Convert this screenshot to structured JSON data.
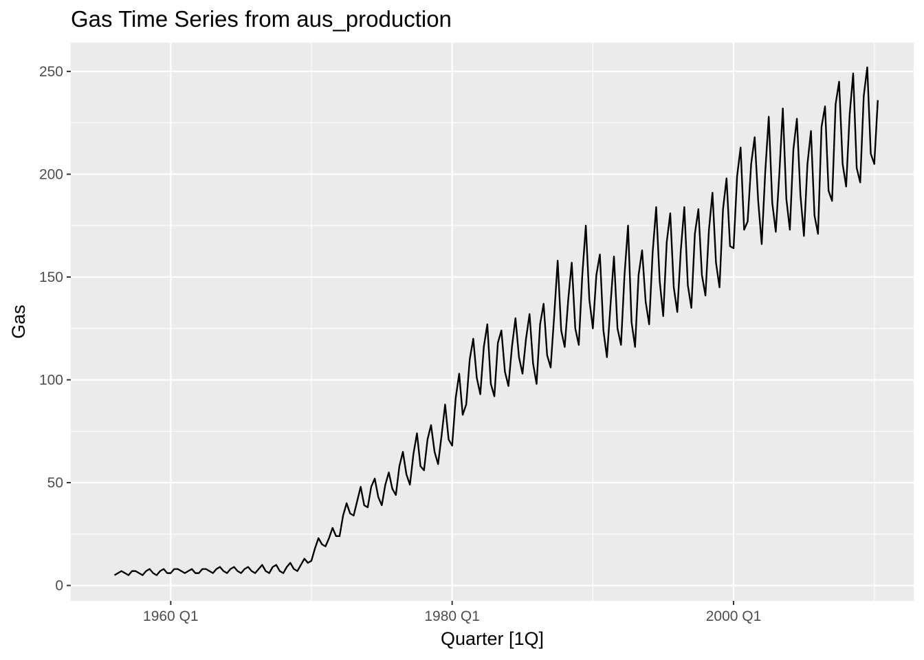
{
  "chart_data": {
    "type": "line",
    "title": "Gas Time Series from aus_production",
    "xlabel": "Quarter [1Q]",
    "ylabel": "Gas",
    "x_ticks": [
      {
        "label": "1960 Q1",
        "value": 1960.0
      },
      {
        "label": "1980 Q1",
        "value": 1980.0
      },
      {
        "label": "2000 Q1",
        "value": 2000.0
      }
    ],
    "y_ticks": [
      {
        "label": "0",
        "value": 0
      },
      {
        "label": "50",
        "value": 50
      },
      {
        "label": "100",
        "value": 100
      },
      {
        "label": "150",
        "value": 150
      },
      {
        "label": "200",
        "value": 200
      },
      {
        "label": "250",
        "value": 250
      }
    ],
    "xlim": [
      1952.9,
      2012.8
    ],
    "ylim": [
      -7.5,
      264
    ],
    "grid": true,
    "colors": {
      "panel": "#ebebeb",
      "grid": "#ffffff",
      "line": "#000000"
    },
    "series": [
      {
        "x_start": "1956 Q1",
        "frequency": "quarterly",
        "values": [
          5,
          6,
          7,
          6,
          5,
          7,
          7,
          6,
          5,
          7,
          8,
          6,
          5,
          7,
          8,
          6,
          6,
          8,
          8,
          7,
          6,
          7,
          8,
          6,
          6,
          8,
          8,
          7,
          6,
          8,
          9,
          7,
          6,
          8,
          9,
          7,
          6,
          8,
          9,
          7,
          6,
          8,
          10,
          7,
          6,
          9,
          10,
          7,
          6,
          9,
          11,
          8,
          7,
          10,
          13,
          11,
          12,
          18,
          23,
          20,
          19,
          23,
          28,
          24,
          24,
          34,
          40,
          35,
          34,
          41,
          48,
          39,
          38,
          48,
          52,
          43,
          39,
          49,
          55,
          47,
          44,
          58,
          65,
          54,
          49,
          64,
          74,
          58,
          56,
          71,
          78,
          65,
          59,
          73,
          88,
          71,
          68,
          91,
          103,
          83,
          88,
          110,
          120,
          101,
          93,
          116,
          127,
          98,
          92,
          118,
          124,
          104,
          97,
          116,
          130,
          111,
          103,
          120,
          132,
          108,
          98,
          127,
          137,
          112,
          106,
          131,
          158,
          124,
          116,
          139,
          157,
          125,
          117,
          151,
          175,
          139,
          125,
          151,
          161,
          124,
          111,
          136,
          160,
          125,
          117,
          151,
          175,
          128,
          116,
          151,
          163,
          138,
          127,
          162,
          184,
          148,
          131,
          167,
          181,
          145,
          133,
          163,
          184,
          146,
          135,
          171,
          183,
          151,
          141,
          173,
          191,
          157,
          145,
          183,
          198,
          165,
          164,
          199,
          213,
          173,
          177,
          205,
          218,
          187,
          166,
          201,
          228,
          186,
          172,
          200,
          232,
          188,
          173,
          212,
          227,
          190,
          170,
          205,
          221,
          180,
          171,
          223,
          233,
          192,
          187,
          234,
          245,
          205,
          194,
          229,
          249,
          203,
          196,
          238,
          252,
          210,
          205,
          236
        ]
      }
    ]
  }
}
